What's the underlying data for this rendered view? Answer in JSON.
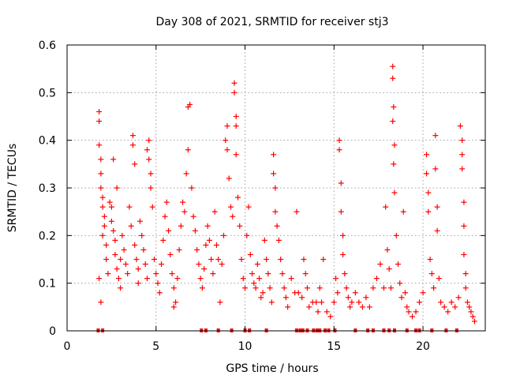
{
  "chart_data": {
    "type": "scatter",
    "title": "Day 308 of 2021, SRMTID for receiver stj3",
    "xlabel": "GPS time / hours",
    "ylabel": "SRMTID / TECUs",
    "xlim": [
      0,
      23.5
    ],
    "ylim": [
      0,
      0.6
    ],
    "x_ticks": [
      0,
      5,
      10,
      15,
      20
    ],
    "x_tick_labels": [
      "0",
      "5",
      "10",
      "15",
      "20"
    ],
    "y_ticks": [
      0,
      0.1,
      0.2,
      0.3,
      0.4,
      0.5,
      0.6
    ],
    "y_tick_labels": [
      "0",
      "0.1",
      "0.2",
      "0.3",
      "0.4",
      "0.5",
      "0.6"
    ],
    "grid": true,
    "marker": "plus",
    "color": "#ff0000",
    "series": [
      {
        "name": "SRMTID",
        "points": [
          [
            1.8,
            0.46
          ],
          [
            1.8,
            0.44
          ],
          [
            1.8,
            0.39
          ],
          [
            1.9,
            0.36
          ],
          [
            1.9,
            0.33
          ],
          [
            1.9,
            0.3
          ],
          [
            2.0,
            0.28
          ],
          [
            2.0,
            0.26
          ],
          [
            2.1,
            0.24
          ],
          [
            2.1,
            0.22
          ],
          [
            2.0,
            0.2
          ],
          [
            2.2,
            0.18
          ],
          [
            2.2,
            0.15
          ],
          [
            2.3,
            0.12
          ],
          [
            1.8,
            0.11
          ],
          [
            1.9,
            0.06
          ],
          [
            2.4,
            0.27
          ],
          [
            2.5,
            0.26
          ],
          [
            2.5,
            0.23
          ],
          [
            2.6,
            0.36
          ],
          [
            2.6,
            0.21
          ],
          [
            2.7,
            0.19
          ],
          [
            2.7,
            0.16
          ],
          [
            2.8,
            0.3
          ],
          [
            2.8,
            0.13
          ],
          [
            2.9,
            0.11
          ],
          [
            3.0,
            0.09
          ],
          [
            3.0,
            0.15
          ],
          [
            3.1,
            0.2
          ],
          [
            3.2,
            0.17
          ],
          [
            3.3,
            0.14
          ],
          [
            3.4,
            0.12
          ],
          [
            3.5,
            0.26
          ],
          [
            3.6,
            0.22
          ],
          [
            3.7,
            0.41
          ],
          [
            3.7,
            0.39
          ],
          [
            3.8,
            0.35
          ],
          [
            3.8,
            0.18
          ],
          [
            3.9,
            0.15
          ],
          [
            4.0,
            0.13
          ],
          [
            4.0,
            0.1
          ],
          [
            4.1,
            0.23
          ],
          [
            4.2,
            0.2
          ],
          [
            4.3,
            0.17
          ],
          [
            4.4,
            0.14
          ],
          [
            4.5,
            0.38
          ],
          [
            4.5,
            0.11
          ],
          [
            4.6,
            0.4
          ],
          [
            4.6,
            0.36
          ],
          [
            4.7,
            0.33
          ],
          [
            4.7,
            0.3
          ],
          [
            4.8,
            0.26
          ],
          [
            4.9,
            0.15
          ],
          [
            5.0,
            0.12
          ],
          [
            5.1,
            0.1
          ],
          [
            5.2,
            0.08
          ],
          [
            5.3,
            0.14
          ],
          [
            5.4,
            0.19
          ],
          [
            5.5,
            0.24
          ],
          [
            5.6,
            0.27
          ],
          [
            5.7,
            0.21
          ],
          [
            5.8,
            0.16
          ],
          [
            5.9,
            0.12
          ],
          [
            6.0,
            0.09
          ],
          [
            6.1,
            0.06
          ],
          [
            6.0,
            0.05
          ],
          [
            6.2,
            0.11
          ],
          [
            6.3,
            0.17
          ],
          [
            6.4,
            0.22
          ],
          [
            6.5,
            0.27
          ],
          [
            6.6,
            0.25
          ],
          [
            6.7,
            0.33
          ],
          [
            6.8,
            0.38
          ],
          [
            6.9,
            0.475
          ],
          [
            6.8,
            0.47
          ],
          [
            7.0,
            0.3
          ],
          [
            7.1,
            0.24
          ],
          [
            7.2,
            0.21
          ],
          [
            7.3,
            0.17
          ],
          [
            7.4,
            0.14
          ],
          [
            7.5,
            0.11
          ],
          [
            7.6,
            0.09
          ],
          [
            7.7,
            0.13
          ],
          [
            7.8,
            0.18
          ],
          [
            7.9,
            0.22
          ],
          [
            8.0,
            0.19
          ],
          [
            8.1,
            0.15
          ],
          [
            8.2,
            0.12
          ],
          [
            8.3,
            0.25
          ],
          [
            8.4,
            0.18
          ],
          [
            8.5,
            0.15
          ],
          [
            8.6,
            0.06
          ],
          [
            8.7,
            0.14
          ],
          [
            8.8,
            0.2
          ],
          [
            8.9,
            0.4
          ],
          [
            9.0,
            0.43
          ],
          [
            9.0,
            0.38
          ],
          [
            9.1,
            0.32
          ],
          [
            9.2,
            0.26
          ],
          [
            9.3,
            0.24
          ],
          [
            9.4,
            0.52
          ],
          [
            9.4,
            0.5
          ],
          [
            9.5,
            0.45
          ],
          [
            9.5,
            0.43
          ],
          [
            9.5,
            0.37
          ],
          [
            9.6,
            0.28
          ],
          [
            9.7,
            0.22
          ],
          [
            9.8,
            0.15
          ],
          [
            9.9,
            0.11
          ],
          [
            10.0,
            0.09
          ],
          [
            10.1,
            0.2
          ],
          [
            10.2,
            0.26
          ],
          [
            10.3,
            0.16
          ],
          [
            10.4,
            0.12
          ],
          [
            10.5,
            0.1
          ],
          [
            10.6,
            0.09
          ],
          [
            10.7,
            0.14
          ],
          [
            10.8,
            0.11
          ],
          [
            10.9,
            0.07
          ],
          [
            11.0,
            0.08
          ],
          [
            11.1,
            0.19
          ],
          [
            11.2,
            0.15
          ],
          [
            11.3,
            0.12
          ],
          [
            11.4,
            0.09
          ],
          [
            11.5,
            0.06
          ],
          [
            11.6,
            0.37
          ],
          [
            11.6,
            0.33
          ],
          [
            11.7,
            0.3
          ],
          [
            11.7,
            0.25
          ],
          [
            11.8,
            0.22
          ],
          [
            11.9,
            0.19
          ],
          [
            12.0,
            0.15
          ],
          [
            12.1,
            0.12
          ],
          [
            12.2,
            0.09
          ],
          [
            12.3,
            0.07
          ],
          [
            12.4,
            0.05
          ],
          [
            12.6,
            0.11
          ],
          [
            12.8,
            0.08
          ],
          [
            12.9,
            0.25
          ],
          [
            13.0,
            0.08
          ],
          [
            13.2,
            0.07
          ],
          [
            13.3,
            0.15
          ],
          [
            13.4,
            0.12
          ],
          [
            13.5,
            0.09
          ],
          [
            13.6,
            0.05
          ],
          [
            13.8,
            0.06
          ],
          [
            14.0,
            0.06
          ],
          [
            14.1,
            0.04
          ],
          [
            14.2,
            0.09
          ],
          [
            14.3,
            0.06
          ],
          [
            14.4,
            0.15
          ],
          [
            14.6,
            0.04
          ],
          [
            14.8,
            0.03
          ],
          [
            15.0,
            0.06
          ],
          [
            15.1,
            0.11
          ],
          [
            15.2,
            0.08
          ],
          [
            15.3,
            0.4
          ],
          [
            15.3,
            0.38
          ],
          [
            15.4,
            0.31
          ],
          [
            15.4,
            0.25
          ],
          [
            15.5,
            0.2
          ],
          [
            15.5,
            0.16
          ],
          [
            15.6,
            0.12
          ],
          [
            15.7,
            0.09
          ],
          [
            15.8,
            0.07
          ],
          [
            15.9,
            0.05
          ],
          [
            16.0,
            0.06
          ],
          [
            16.2,
            0.08
          ],
          [
            16.4,
            0.06
          ],
          [
            16.6,
            0.05
          ],
          [
            16.8,
            0.07
          ],
          [
            17.0,
            0.05
          ],
          [
            17.2,
            0.09
          ],
          [
            17.4,
            0.11
          ],
          [
            17.6,
            0.14
          ],
          [
            17.8,
            0.09
          ],
          [
            17.9,
            0.26
          ],
          [
            18.0,
            0.17
          ],
          [
            18.1,
            0.13
          ],
          [
            18.2,
            0.09
          ],
          [
            18.3,
            0.555
          ],
          [
            18.3,
            0.53
          ],
          [
            18.35,
            0.47
          ],
          [
            18.3,
            0.44
          ],
          [
            18.4,
            0.39
          ],
          [
            18.35,
            0.35
          ],
          [
            18.4,
            0.29
          ],
          [
            18.5,
            0.2
          ],
          [
            18.6,
            0.14
          ],
          [
            18.7,
            0.1
          ],
          [
            18.8,
            0.07
          ],
          [
            18.9,
            0.25
          ],
          [
            19.0,
            0.08
          ],
          [
            19.1,
            0.05
          ],
          [
            19.2,
            0.04
          ],
          [
            19.4,
            0.03
          ],
          [
            19.6,
            0.04
          ],
          [
            19.8,
            0.06
          ],
          [
            20.0,
            0.08
          ],
          [
            20.2,
            0.37
          ],
          [
            20.2,
            0.33
          ],
          [
            20.3,
            0.29
          ],
          [
            20.3,
            0.25
          ],
          [
            20.4,
            0.15
          ],
          [
            20.5,
            0.12
          ],
          [
            20.6,
            0.09
          ],
          [
            20.7,
            0.41
          ],
          [
            20.7,
            0.34
          ],
          [
            20.8,
            0.26
          ],
          [
            20.8,
            0.21
          ],
          [
            20.9,
            0.11
          ],
          [
            21.0,
            0.06
          ],
          [
            21.2,
            0.05
          ],
          [
            21.4,
            0.04
          ],
          [
            21.6,
            0.06
          ],
          [
            21.8,
            0.05
          ],
          [
            22.0,
            0.07
          ],
          [
            22.1,
            0.43
          ],
          [
            22.2,
            0.4
          ],
          [
            22.2,
            0.37
          ],
          [
            22.2,
            0.34
          ],
          [
            22.3,
            0.27
          ],
          [
            22.3,
            0.22
          ],
          [
            22.3,
            0.16
          ],
          [
            22.4,
            0.12
          ],
          [
            22.4,
            0.09
          ],
          [
            22.5,
            0.06
          ],
          [
            22.6,
            0.05
          ],
          [
            22.7,
            0.04
          ],
          [
            22.8,
            0.03
          ],
          [
            22.9,
            0.02
          ]
        ]
      }
    ],
    "zero_markers_x": [
      1.75,
      2.0,
      7.55,
      7.8,
      8.5,
      9.25,
      10.0,
      10.25,
      11.2,
      12.9,
      13.1,
      13.25,
      13.5,
      13.85,
      14.05,
      14.2,
      14.5,
      14.7,
      15.05,
      16.2,
      16.9,
      17.2,
      17.8,
      18.1,
      18.4,
      19.1,
      19.6,
      19.8,
      20.5,
      21.3,
      21.9
    ]
  }
}
